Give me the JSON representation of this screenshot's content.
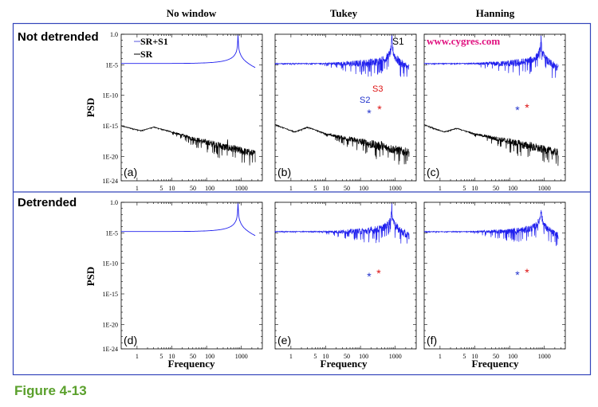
{
  "figure_caption": "Figure 4-13",
  "column_titles": [
    "No window",
    "Tukey",
    "Hanning"
  ],
  "row_titles": [
    "Not detrended",
    "Detrended"
  ],
  "watermark": "www.cygres.com",
  "colors": {
    "sr_s1": "#2020ee",
    "sr": "#000000",
    "s2_marker": "#2233cc",
    "s3_marker": "#dd1111",
    "watermark": "#e0107f",
    "frame": "#3344bb",
    "caption": "#5aa02c"
  },
  "legend": [
    "SR+S1",
    "SR"
  ],
  "chart_data": [
    {
      "panel": "(a)",
      "type": "line",
      "window": "No window",
      "detrended": false,
      "xlabel": "",
      "ylabel": "PSD",
      "xscale": "log",
      "yscale": "log",
      "xlim": [
        0.35,
        4000
      ],
      "ylim": [
        1e-24,
        1.0
      ],
      "xticks": [
        "1",
        "5",
        "10",
        "50",
        "100",
        "1000"
      ],
      "yticks": [
        "1.0",
        "1E-5",
        "1E-10",
        "1E-15",
        "1E-20",
        "1E-24"
      ],
      "series": [
        {
          "name": "SR+S1",
          "anchors_log10": [
            [
              0.35,
              -6.8
            ],
            [
              300,
              -6.8
            ],
            [
              2500,
              -10
            ]
          ],
          "peak": {
            "freq": 800,
            "log10_height": 0
          },
          "noise_decades": 0
        },
        {
          "name": "SR",
          "anchors_log10": [
            [
              0.35,
              -15
            ],
            [
              1.3,
              -15.8
            ],
            [
              3,
              -15.2
            ],
            [
              10,
              -16
            ],
            [
              50,
              -17.2
            ],
            [
              300,
              -18.3
            ],
            [
              2500,
              -19.5
            ]
          ],
          "peak": {
            "freq": 400,
            "log10_height": -17.5
          },
          "noise_decades": 2.2
        }
      ]
    },
    {
      "panel": "(b)",
      "type": "line",
      "window": "Tukey",
      "detrended": false,
      "xscale": "log",
      "yscale": "log",
      "xlim": [
        0.35,
        4000
      ],
      "ylim": [
        1e-24,
        1.0
      ],
      "xticks": [
        "1",
        "5",
        "10",
        "50",
        "100",
        "1000"
      ],
      "annotations": [
        "S1",
        "S2",
        "S3"
      ],
      "series": [
        {
          "name": "SR+S1",
          "anchors_log10": [
            [
              0.35,
              -10.8
            ],
            [
              1.3,
              -12
            ],
            [
              3,
              -11.2
            ],
            [
              10,
              -12.3
            ],
            [
              100,
              -13.8
            ],
            [
              2500,
              -15
            ]
          ],
          "peak": {
            "freq": 800,
            "log10_height": 0
          },
          "noise_decades": 2.5
        },
        {
          "name": "SR",
          "anchors_log10": [
            [
              0.35,
              -14.8
            ],
            [
              1.3,
              -16
            ],
            [
              3,
              -15.2
            ],
            [
              10,
              -16.3
            ],
            [
              100,
              -17.5
            ],
            [
              2500,
              -19.3
            ]
          ],
          "peak": {
            "freq": 400,
            "log10_height": -17
          },
          "noise_decades": 2.5
        }
      ]
    },
    {
      "panel": "(c)",
      "type": "line",
      "window": "Hanning",
      "detrended": false,
      "xscale": "log",
      "yscale": "log",
      "xlim": [
        0.35,
        4000
      ],
      "ylim": [
        1e-24,
        1.0
      ],
      "xticks": [
        "1",
        "5",
        "10",
        "50",
        "100",
        "1000"
      ],
      "series": [
        {
          "name": "SR+S1",
          "anchors_log10": [
            [
              0.35,
              -10.8
            ],
            [
              1.3,
              -12
            ],
            [
              3,
              -11.4
            ],
            [
              10,
              -12.3
            ],
            [
              100,
              -13.8
            ],
            [
              2500,
              -15
            ]
          ],
          "peak": {
            "freq": 800,
            "log10_height": 0
          },
          "noise_decades": 2.3
        },
        {
          "name": "SR",
          "anchors_log10": [
            [
              0.35,
              -14.8
            ],
            [
              1.3,
              -16
            ],
            [
              3,
              -15.4
            ],
            [
              10,
              -16.3
            ],
            [
              100,
              -17.5
            ],
            [
              2500,
              -19.3
            ]
          ],
          "peak": {
            "freq": 400,
            "log10_height": -17
          },
          "noise_decades": 2.3
        }
      ]
    },
    {
      "panel": "(d)",
      "type": "line",
      "window": "No window",
      "detrended": true,
      "xlabel": "Frequency",
      "ylabel": "PSD",
      "xscale": "log",
      "yscale": "log",
      "xlim": [
        0.35,
        4000
      ],
      "ylim": [
        1e-24,
        1.0
      ],
      "xticks": [
        "1",
        "5",
        "10",
        "50",
        "100",
        "1000"
      ],
      "yticks": [
        "1.0",
        "1E-5",
        "1E-10",
        "1E-15",
        "1E-20",
        "1E-24"
      ],
      "series": [
        {
          "name": "SR+S1",
          "anchors_log10": [
            [
              0.35,
              -6.8
            ],
            [
              300,
              -6.8
            ],
            [
              2500,
              -10
            ]
          ],
          "peak": {
            "freq": 800,
            "log10_height": 0
          },
          "noise_decades": 0
        }
      ]
    },
    {
      "panel": "(e)",
      "type": "line",
      "window": "Tukey",
      "detrended": true,
      "xlabel": "Frequency",
      "xscale": "log",
      "yscale": "log",
      "xlim": [
        0.35,
        4000
      ],
      "ylim": [
        1e-24,
        1.0
      ],
      "xticks": [
        "1",
        "5",
        "10",
        "50",
        "100",
        "1000"
      ],
      "series": [
        {
          "name": "SR+S1",
          "anchors_log10": [
            [
              0.35,
              -11.5
            ],
            [
              5,
              -11.8
            ],
            [
              15,
              -13.2
            ],
            [
              100,
              -14
            ],
            [
              2500,
              -15.3
            ]
          ],
          "peak": {
            "freq": 800,
            "log10_height": 0
          },
          "noise_decades": 2.3
        }
      ]
    },
    {
      "panel": "(f)",
      "type": "line",
      "window": "Hanning",
      "detrended": true,
      "xlabel": "Frequency",
      "xscale": "log",
      "yscale": "log",
      "xlim": [
        0.35,
        4000
      ],
      "ylim": [
        1e-24,
        1.0
      ],
      "xticks": [
        "1",
        "5",
        "10",
        "50",
        "100",
        "1000"
      ],
      "series": [
        {
          "name": "SR+S1",
          "anchors_log10": [
            [
              0.35,
              -9.3
            ],
            [
              3,
              -12.3
            ],
            [
              10,
              -12.8
            ],
            [
              100,
              -14
            ],
            [
              2500,
              -15.3
            ]
          ],
          "peak": {
            "freq": 800,
            "log10_height": 0
          },
          "noise_decades": 2.1
        }
      ]
    }
  ]
}
